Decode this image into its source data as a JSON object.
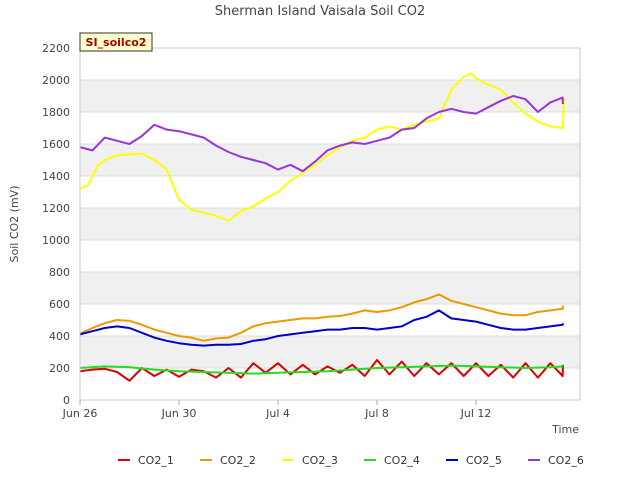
{
  "chart_data": {
    "type": "line",
    "title": "Sherman Island Vaisala Soil CO2",
    "xlabel": "Time",
    "ylabel": "Soil CO2 (mV)",
    "station_badge": "SI_soilco2",
    "xlim": [
      0,
      20.2
    ],
    "ylim": [
      0,
      2200
    ],
    "yticks": [
      0,
      200,
      400,
      600,
      800,
      1000,
      1200,
      1400,
      1600,
      1800,
      2000,
      2200
    ],
    "ytick_labels": [
      "0",
      "200",
      "400",
      "600",
      "800",
      "1000",
      "1200",
      "1400",
      "1600",
      "1800",
      "2000",
      "2200"
    ],
    "xticks": [
      0,
      4,
      8,
      12,
      16
    ],
    "xtick_labels": [
      "Jun 26",
      "Jun 30",
      "Jul 4",
      "Jul 8",
      "Jul 12"
    ],
    "grid": true,
    "legend_position": "bottom",
    "series": [
      {
        "name": "CO2_1",
        "color": "#dd0000",
        "points": [
          [
            0,
            180
          ],
          [
            0.5,
            190
          ],
          [
            1,
            195
          ],
          [
            1.5,
            175
          ],
          [
            2,
            120
          ],
          [
            2.5,
            200
          ],
          [
            3,
            150
          ],
          [
            3.5,
            190
          ],
          [
            4,
            145
          ],
          [
            4.5,
            190
          ],
          [
            5,
            180
          ],
          [
            5.5,
            140
          ],
          [
            6,
            200
          ],
          [
            6.5,
            140
          ],
          [
            7,
            230
          ],
          [
            7.5,
            170
          ],
          [
            8,
            230
          ],
          [
            8.5,
            160
          ],
          [
            9,
            220
          ],
          [
            9.5,
            160
          ],
          [
            10,
            210
          ],
          [
            10.5,
            170
          ],
          [
            11,
            220
          ],
          [
            11.5,
            150
          ],
          [
            12,
            250
          ],
          [
            12.5,
            160
          ],
          [
            13,
            240
          ],
          [
            13.5,
            150
          ],
          [
            14,
            230
          ],
          [
            14.5,
            160
          ],
          [
            15,
            230
          ],
          [
            15.5,
            150
          ],
          [
            16,
            230
          ],
          [
            16.5,
            150
          ],
          [
            17,
            220
          ],
          [
            17.5,
            140
          ],
          [
            18,
            230
          ],
          [
            18.5,
            140
          ],
          [
            19,
            230
          ],
          [
            19.5,
            150
          ],
          [
            20,
            220
          ]
        ]
      },
      {
        "name": "CO2_2",
        "color": "#ee9900",
        "points": [
          [
            0,
            415
          ],
          [
            0.5,
            450
          ],
          [
            1,
            480
          ],
          [
            1.5,
            500
          ],
          [
            2,
            495
          ],
          [
            2.5,
            470
          ],
          [
            3,
            440
          ],
          [
            3.5,
            420
          ],
          [
            4,
            400
          ],
          [
            4.5,
            390
          ],
          [
            5,
            370
          ],
          [
            5.5,
            385
          ],
          [
            6,
            390
          ],
          [
            6.5,
            420
          ],
          [
            7,
            460
          ],
          [
            7.5,
            480
          ],
          [
            8,
            490
          ],
          [
            8.5,
            500
          ],
          [
            9,
            510
          ],
          [
            9.5,
            510
          ],
          [
            10,
            520
          ],
          [
            10.5,
            525
          ],
          [
            11,
            540
          ],
          [
            11.5,
            560
          ],
          [
            12,
            550
          ],
          [
            12.5,
            560
          ],
          [
            13,
            580
          ],
          [
            13.5,
            610
          ],
          [
            14,
            630
          ],
          [
            14.5,
            660
          ],
          [
            15,
            620
          ],
          [
            15.5,
            600
          ],
          [
            16,
            580
          ],
          [
            16.5,
            560
          ],
          [
            17,
            540
          ],
          [
            17.5,
            530
          ],
          [
            18,
            530
          ],
          [
            18.5,
            550
          ],
          [
            19,
            560
          ],
          [
            19.5,
            570
          ],
          [
            20,
            590
          ]
        ]
      },
      {
        "name": "CO2_3",
        "color": "#ffff00",
        "points": [
          [
            0,
            1320
          ],
          [
            0.3,
            1340
          ],
          [
            0.7,
            1460
          ],
          [
            1,
            1500
          ],
          [
            1.5,
            1530
          ],
          [
            2,
            1535
          ],
          [
            2.5,
            1540
          ],
          [
            3,
            1500
          ],
          [
            3.5,
            1440
          ],
          [
            4,
            1250
          ],
          [
            4.5,
            1190
          ],
          [
            5,
            1170
          ],
          [
            5.5,
            1150
          ],
          [
            6,
            1120
          ],
          [
            6.5,
            1180
          ],
          [
            7,
            1210
          ],
          [
            7.5,
            1260
          ],
          [
            8,
            1300
          ],
          [
            8.5,
            1370
          ],
          [
            9,
            1420
          ],
          [
            9.5,
            1470
          ],
          [
            10,
            1530
          ],
          [
            10.5,
            1580
          ],
          [
            11,
            1620
          ],
          [
            11.5,
            1640
          ],
          [
            12,
            1690
          ],
          [
            12.5,
            1710
          ],
          [
            13,
            1690
          ],
          [
            13.5,
            1720
          ],
          [
            14,
            1740
          ],
          [
            14.5,
            1760
          ],
          [
            15,
            1940
          ],
          [
            15.5,
            2020
          ],
          [
            15.8,
            2040
          ],
          [
            16,
            2010
          ],
          [
            16.5,
            1970
          ],
          [
            17,
            1940
          ],
          [
            17.5,
            1860
          ],
          [
            18,
            1790
          ],
          [
            18.5,
            1740
          ],
          [
            19,
            1710
          ],
          [
            19.5,
            1700
          ],
          [
            20,
            1720
          ],
          [
            20.5,
            1750
          ],
          [
            21,
            1790
          ],
          [
            21.5,
            1850
          ],
          [
            22,
            1880
          ]
        ]
      },
      {
        "name": "CO2_4",
        "color": "#22dd22",
        "points": [
          [
            0,
            200
          ],
          [
            1,
            210
          ],
          [
            2,
            205
          ],
          [
            3,
            190
          ],
          [
            4,
            180
          ],
          [
            5,
            175
          ],
          [
            6,
            170
          ],
          [
            7,
            165
          ],
          [
            8,
            170
          ],
          [
            9,
            175
          ],
          [
            10,
            180
          ],
          [
            11,
            190
          ],
          [
            12,
            200
          ],
          [
            13,
            205
          ],
          [
            14,
            210
          ],
          [
            15,
            215
          ],
          [
            16,
            210
          ],
          [
            17,
            205
          ],
          [
            18,
            200
          ],
          [
            19,
            205
          ],
          [
            20,
            210
          ]
        ]
      },
      {
        "name": "CO2_5",
        "color": "#0000cc",
        "points": [
          [
            0,
            410
          ],
          [
            0.5,
            430
          ],
          [
            1,
            450
          ],
          [
            1.5,
            460
          ],
          [
            2,
            450
          ],
          [
            2.5,
            420
          ],
          [
            3,
            390
          ],
          [
            3.5,
            370
          ],
          [
            4,
            355
          ],
          [
            4.5,
            345
          ],
          [
            5,
            340
          ],
          [
            5.5,
            345
          ],
          [
            6,
            345
          ],
          [
            6.5,
            350
          ],
          [
            7,
            370
          ],
          [
            7.5,
            380
          ],
          [
            8,
            400
          ],
          [
            8.5,
            410
          ],
          [
            9,
            420
          ],
          [
            9.5,
            430
          ],
          [
            10,
            440
          ],
          [
            10.5,
            440
          ],
          [
            11,
            450
          ],
          [
            11.5,
            450
          ],
          [
            12,
            440
          ],
          [
            12.5,
            450
          ],
          [
            13,
            460
          ],
          [
            13.5,
            500
          ],
          [
            14,
            520
          ],
          [
            14.5,
            560
          ],
          [
            15,
            510
          ],
          [
            15.5,
            500
          ],
          [
            16,
            490
          ],
          [
            16.5,
            470
          ],
          [
            17,
            450
          ],
          [
            17.5,
            440
          ],
          [
            18,
            440
          ],
          [
            18.5,
            450
          ],
          [
            19,
            460
          ],
          [
            19.5,
            470
          ],
          [
            20,
            480
          ]
        ]
      },
      {
        "name": "CO2_6",
        "color": "#9933dd",
        "points": [
          [
            0,
            1580
          ],
          [
            0.5,
            1560
          ],
          [
            1,
            1640
          ],
          [
            1.5,
            1620
          ],
          [
            2,
            1600
          ],
          [
            2.5,
            1650
          ],
          [
            3,
            1720
          ],
          [
            3.5,
            1690
          ],
          [
            4,
            1680
          ],
          [
            4.5,
            1660
          ],
          [
            5,
            1640
          ],
          [
            5.5,
            1590
          ],
          [
            6,
            1550
          ],
          [
            6.5,
            1520
          ],
          [
            7,
            1500
          ],
          [
            7.5,
            1480
          ],
          [
            8,
            1440
          ],
          [
            8.5,
            1470
          ],
          [
            9,
            1430
          ],
          [
            9.5,
            1490
          ],
          [
            10,
            1560
          ],
          [
            10.5,
            1590
          ],
          [
            11,
            1610
          ],
          [
            11.5,
            1600
          ],
          [
            12,
            1620
          ],
          [
            12.5,
            1640
          ],
          [
            13,
            1690
          ],
          [
            13.5,
            1700
          ],
          [
            14,
            1760
          ],
          [
            14.5,
            1800
          ],
          [
            15,
            1820
          ],
          [
            15.5,
            1800
          ],
          [
            16,
            1790
          ],
          [
            16.5,
            1830
          ],
          [
            17,
            1870
          ],
          [
            17.5,
            1900
          ],
          [
            18,
            1880
          ],
          [
            18.5,
            1800
          ],
          [
            19,
            1860
          ],
          [
            19.5,
            1890
          ],
          [
            20,
            1850
          ]
        ]
      }
    ]
  }
}
